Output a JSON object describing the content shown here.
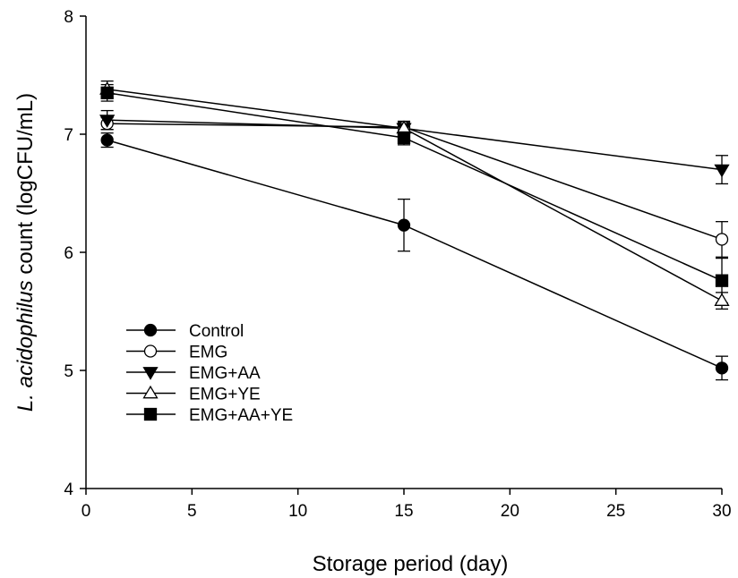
{
  "chart_data": {
    "type": "line",
    "title": "",
    "xlabel": "Storage period (day)",
    "ylabel_italic": "L. acidophilus",
    "ylabel_rest": " count (logCFU/mL)",
    "xlim": [
      0,
      30
    ],
    "ylim": [
      4,
      8
    ],
    "xticks": [
      0,
      5,
      10,
      15,
      20,
      25,
      30
    ],
    "yticks": [
      4,
      5,
      6,
      7,
      8
    ],
    "grid": false,
    "legend_position": "lower-left",
    "x": [
      1,
      15,
      30
    ],
    "series": [
      {
        "name": "Control",
        "marker": "circle",
        "filled": true,
        "values": [
          6.95,
          6.23,
          5.02
        ],
        "errors": [
          0.06,
          0.22,
          0.1
        ]
      },
      {
        "name": "EMG",
        "marker": "circle",
        "filled": false,
        "values": [
          7.09,
          7.06,
          6.11
        ],
        "errors": [
          0.05,
          0.05,
          0.15
        ]
      },
      {
        "name": "EMG+AA",
        "marker": "triangle-down",
        "filled": true,
        "values": [
          7.12,
          7.05,
          6.7
        ],
        "errors": [
          0.08,
          0.05,
          0.12
        ]
      },
      {
        "name": "EMG+YE",
        "marker": "triangle-up",
        "filled": false,
        "values": [
          7.38,
          7.05,
          5.59
        ],
        "errors": [
          0.07,
          0.04,
          0.07
        ]
      },
      {
        "name": "EMG+AA+YE",
        "marker": "square",
        "filled": true,
        "values": [
          7.35,
          6.97,
          5.76
        ],
        "errors": [
          0.07,
          0.06,
          0.19
        ]
      }
    ]
  }
}
